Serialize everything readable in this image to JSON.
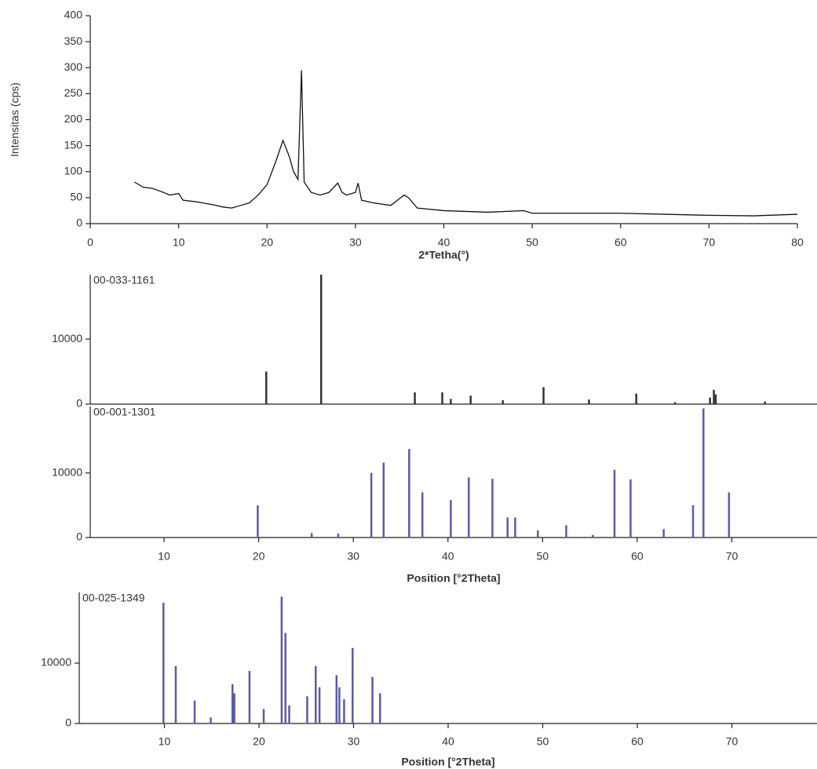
{
  "chart_data": [
    {
      "type": "line",
      "y_label": "Intensitas (cps)",
      "x_label": "2*Tetha(°)",
      "color": "#111111",
      "x": [
        5,
        6,
        7,
        8,
        9,
        10,
        10.5,
        12,
        14,
        15,
        16,
        17,
        18,
        19,
        20,
        21,
        21.8,
        22.5,
        23,
        23.5,
        23.9,
        24.2,
        25,
        26,
        27,
        28,
        28.5,
        29,
        30,
        30.3,
        30.7,
        32,
        34,
        35.5,
        36,
        37,
        40,
        45,
        49,
        50,
        55,
        60,
        65,
        70,
        75,
        80
      ],
      "values": [
        80,
        70,
        68,
        62,
        55,
        58,
        45,
        42,
        36,
        32,
        30,
        35,
        40,
        55,
        75,
        120,
        160,
        130,
        100,
        85,
        295,
        80,
        60,
        55,
        60,
        78,
        60,
        55,
        60,
        78,
        45,
        40,
        35,
        55,
        50,
        30,
        25,
        22,
        25,
        20,
        20,
        20,
        18,
        16,
        15,
        18
      ],
      "xlim": [
        0,
        80
      ],
      "ylim": [
        0,
        400
      ],
      "xticks": [
        0,
        10,
        20,
        30,
        40,
        50,
        60,
        70,
        80
      ],
      "yticks": [
        0,
        50,
        100,
        150,
        200,
        250,
        300,
        350,
        400
      ]
    },
    {
      "type": "stem",
      "reference": "00-033-1161",
      "color": "#333333",
      "x": [
        20.8,
        26.6,
        36.5,
        39.4,
        40.3,
        42.4,
        45.8,
        50.1,
        54.9,
        59.9,
        64.0,
        67.7,
        68.1,
        68.3,
        73.5
      ],
      "values": [
        5000,
        19900,
        1800,
        1800,
        800,
        1300,
        600,
        2600,
        700,
        1600,
        300,
        1000,
        2200,
        1500,
        400
      ],
      "xlim": [
        2.2,
        79
      ],
      "ylim": [
        0,
        19900
      ],
      "yticks": [
        0,
        10000
      ]
    },
    {
      "type": "stem",
      "reference": "00-001-1301",
      "color": "#5a5aa8",
      "x_label": "Position [°2Theta]",
      "x": [
        19.9,
        25.6,
        28.4,
        31.9,
        33.2,
        35.9,
        37.3,
        40.3,
        42.2,
        44.7,
        46.3,
        47.1,
        49.5,
        52.5,
        55.3,
        57.6,
        59.3,
        62.8,
        65.9,
        67.0,
        69.7
      ],
      "values": [
        5000,
        700,
        600,
        10000,
        11600,
        13700,
        7000,
        5800,
        9300,
        9100,
        3100,
        3100,
        1100,
        1900,
        400,
        10500,
        9000,
        1300,
        5000,
        20000,
        7000
      ],
      "xlim": [
        2.2,
        79
      ],
      "ylim": [
        0,
        20300
      ],
      "xticks": [
        10,
        20,
        30,
        40,
        50,
        60,
        70
      ],
      "yticks": [
        0,
        10000
      ]
    },
    {
      "type": "stem",
      "reference": "00-025-1349",
      "color": "#5a5aa8",
      "x_label": "Position [°2Theta]",
      "x": [
        9.9,
        11.2,
        13.2,
        14.9,
        17.2,
        17.4,
        19.0,
        20.5,
        22.4,
        22.8,
        23.2,
        25.1,
        26.0,
        26.4,
        28.2,
        28.5,
        29.0,
        29.9,
        32.0,
        32.8
      ],
      "values": [
        20000,
        9500,
        3800,
        1000,
        6500,
        5000,
        8700,
        2400,
        21000,
        15000,
        3000,
        4500,
        9500,
        6000,
        8000,
        6000,
        4000,
        12500,
        7700,
        5000
      ],
      "xlim": [
        1,
        79
      ],
      "ylim": [
        0,
        21700
      ],
      "xticks": [
        10,
        20,
        30,
        40,
        50,
        60,
        70
      ],
      "yticks": [
        0,
        10000
      ]
    }
  ]
}
